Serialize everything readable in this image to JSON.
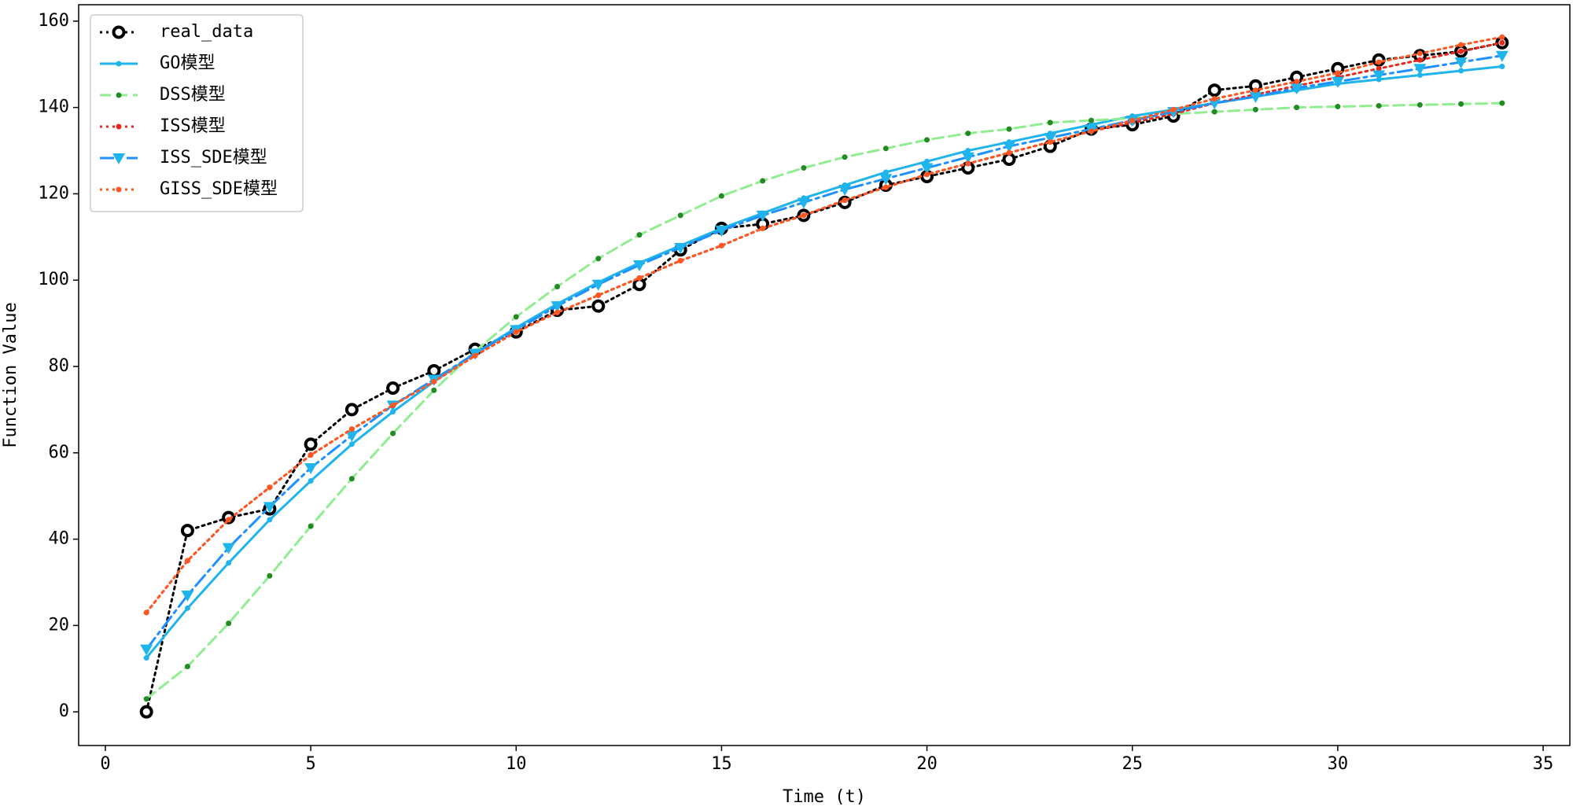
{
  "chart_data": {
    "type": "line",
    "xlabel": "Time (t)",
    "ylabel": "Function Value",
    "x": [
      1,
      2,
      3,
      4,
      5,
      6,
      7,
      8,
      9,
      10,
      11,
      12,
      13,
      14,
      15,
      16,
      17,
      18,
      19,
      20,
      21,
      22,
      23,
      24,
      25,
      26,
      27,
      28,
      29,
      30,
      31,
      32,
      33,
      34
    ],
    "xlim": [
      -0.65,
      35.65
    ],
    "xticks": [
      0,
      5,
      10,
      15,
      20,
      25,
      30,
      35
    ],
    "ylim": [
      -7.8,
      163.8
    ],
    "yticks": [
      0,
      20,
      40,
      60,
      80,
      100,
      120,
      140,
      160
    ],
    "legend": "upper left",
    "series": [
      {
        "name": "real_data",
        "color": "#000000",
        "linestyle": "dotted",
        "marker": "o",
        "values": [
          0,
          42,
          45,
          47,
          62,
          70,
          75,
          79,
          84,
          88,
          93,
          94,
          99,
          107,
          112,
          113,
          115,
          118,
          122,
          124,
          126,
          128,
          131,
          135,
          136,
          138,
          144,
          145,
          147,
          149,
          151,
          152,
          153,
          155
        ]
      },
      {
        "name": "GO模型",
        "color": "#1fb4ec",
        "linestyle": "solid",
        "marker": ".",
        "values": [
          12.5,
          24,
          34.5,
          44.5,
          53.5,
          62,
          69.5,
          76.5,
          83,
          89,
          94.5,
          99.5,
          104,
          108,
          112,
          115.5,
          119,
          122,
          125,
          127.5,
          130,
          132,
          134,
          136,
          138,
          139.5,
          141,
          142.5,
          144,
          145.5,
          146.5,
          147.5,
          148.5,
          149.5
        ]
      },
      {
        "name": "DSS模型",
        "color": "#90ee90",
        "marker_color": "#228b22",
        "linestyle": "dashed",
        "marker": ".",
        "values": [
          3,
          10.5,
          20.5,
          31.5,
          43,
          54,
          64.5,
          74.5,
          83.5,
          91.5,
          98.5,
          105,
          110.5,
          115,
          119.5,
          123,
          126,
          128.5,
          130.5,
          132.5,
          134,
          135,
          136.5,
          137,
          137.5,
          138.5,
          139,
          139.5,
          140,
          140.2,
          140.4,
          140.6,
          140.8,
          141
        ]
      },
      {
        "name": "ISS模型",
        "color": "#e8291c",
        "linestyle": "dotted",
        "marker": ".",
        "values": [
          23,
          35,
          44.5,
          52,
          59.5,
          65.5,
          71,
          76.5,
          82.5,
          88,
          92.5,
          96.5,
          100.5,
          104.5,
          108,
          112,
          115,
          118.5,
          121.5,
          124.5,
          127,
          129.5,
          132,
          134.5,
          136.5,
          138.5,
          141,
          143,
          145,
          147,
          149,
          151,
          153,
          155
        ]
      },
      {
        "name": "ISS_SDE模型",
        "color": "#1e90ff",
        "marker_color": "#1fb4ec",
        "linestyle": "dashdot",
        "marker": "v",
        "values": [
          14.5,
          27,
          38,
          47.5,
          56.5,
          64,
          71,
          77,
          83,
          88.5,
          94,
          99,
          103.5,
          107.5,
          111.5,
          115,
          118,
          121,
          123.5,
          126,
          128.5,
          131,
          133,
          135,
          137,
          139,
          141,
          142.5,
          144.5,
          146,
          147.5,
          149,
          150.5,
          152
        ]
      },
      {
        "name": "GISS_SDE模型",
        "color": "#ff5722",
        "linestyle": "dotted",
        "marker": ".",
        "values": [
          23,
          35,
          44.5,
          52,
          59.5,
          65.5,
          71,
          76.5,
          82.5,
          88,
          92.5,
          96.5,
          100.5,
          104.5,
          108,
          112,
          115,
          118.5,
          121.5,
          124.5,
          127,
          129.5,
          132,
          134.5,
          137,
          139.5,
          142,
          144,
          146,
          148,
          150.5,
          152.5,
          154.5,
          156.3
        ]
      }
    ]
  }
}
